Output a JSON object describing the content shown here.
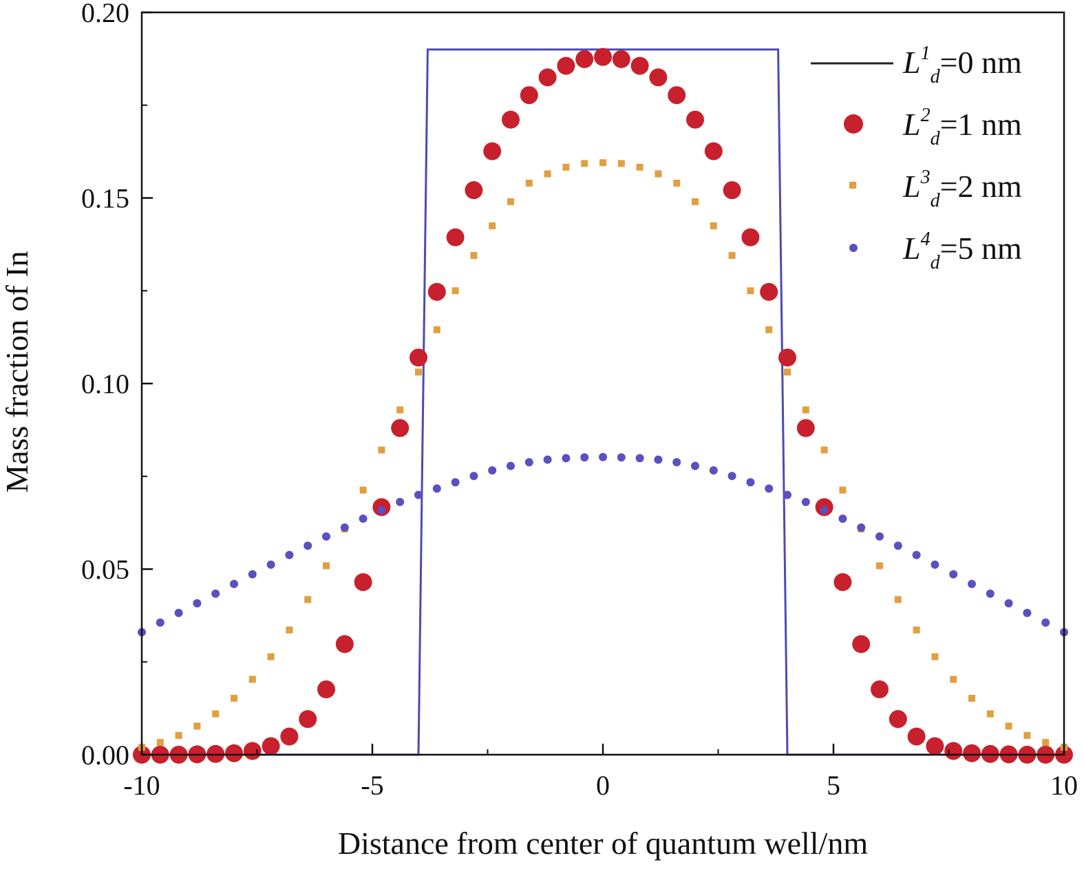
{
  "chart_data": {
    "type": "scatter",
    "title": "",
    "xlabel": "Distance from center of quantum well/nm",
    "ylabel": "Mass fraction of In",
    "xlim": [
      -10,
      10
    ],
    "ylim": [
      0,
      0.2
    ],
    "x_ticks": [
      "-10",
      "-5",
      "0",
      "5",
      "10"
    ],
    "y_ticks": [
      "0.00",
      "0.05",
      "0.10",
      "0.15",
      "0.20"
    ],
    "grid": false,
    "legend_position": "top-right",
    "colors": {
      "line": "#4a4ab8",
      "red": "#c8202c",
      "orange": "#e0a040",
      "blue": "#5a50c0"
    },
    "series": [
      {
        "legend": {
          "sym": "L",
          "sup": "1",
          "sub": "d",
          "rest": "=0 nm"
        },
        "marker": "line",
        "x": [
          -10,
          -4,
          -3.8,
          3.8,
          4,
          10
        ],
        "y": [
          0,
          0,
          0.19,
          0.19,
          0,
          0
        ]
      },
      {
        "legend": {
          "sym": "L",
          "sup": "2",
          "sub": "d",
          "rest": "=1 nm"
        },
        "marker": "circle-large",
        "x": [
          -10.0,
          -9.6,
          -9.2,
          -8.8,
          -8.4,
          -8.0,
          -7.6,
          -7.2,
          -6.8,
          -6.4,
          -6.0,
          -5.6,
          -5.2,
          -4.8,
          -4.4,
          -4.0,
          -3.6,
          -3.2,
          -2.8,
          -2.4,
          -2.0,
          -1.6,
          -1.2,
          -0.8,
          -0.4,
          0.0,
          0.4,
          0.8,
          1.2,
          1.6,
          2.0,
          2.4,
          2.8,
          3.2,
          3.6,
          4.0,
          4.4,
          4.8,
          5.2,
          5.6,
          6.0,
          6.4,
          6.8,
          7.2,
          7.6,
          8.0,
          8.4,
          8.8,
          9.2,
          9.6,
          10.0
        ],
        "y": [
          0.0,
          0.0,
          0.0,
          0.0001,
          0.0002,
          0.0004,
          0.001,
          0.0023,
          0.0049,
          0.0096,
          0.0176,
          0.0298,
          0.0465,
          0.0667,
          0.088,
          0.107,
          0.1247,
          0.1394,
          0.1521,
          0.1626,
          0.1711,
          0.1777,
          0.1825,
          0.1856,
          0.1874,
          0.188,
          0.1874,
          0.1856,
          0.1825,
          0.1777,
          0.1711,
          0.1626,
          0.1521,
          0.1394,
          0.1247,
          0.107,
          0.088,
          0.0667,
          0.0465,
          0.0298,
          0.0176,
          0.0096,
          0.0049,
          0.0023,
          0.001,
          0.0004,
          0.0002,
          0.0001,
          0.0,
          0.0,
          0.0
        ]
      },
      {
        "legend": {
          "sym": "L",
          "sup": "3",
          "sub": "d",
          "rest": "=2 nm"
        },
        "marker": "square-small",
        "x": [
          -10.0,
          -9.6,
          -9.2,
          -8.8,
          -8.4,
          -8.0,
          -7.6,
          -7.2,
          -6.8,
          -6.4,
          -6.0,
          -5.6,
          -5.2,
          -4.8,
          -4.4,
          -4.0,
          -3.6,
          -3.2,
          -2.8,
          -2.4,
          -2.0,
          -1.6,
          -1.2,
          -0.8,
          -0.4,
          0.0,
          0.4,
          0.8,
          1.2,
          1.6,
          2.0,
          2.4,
          2.8,
          3.2,
          3.6,
          4.0,
          4.4,
          4.8,
          5.2,
          5.6,
          6.0,
          6.4,
          6.8,
          7.2,
          7.6,
          8.0,
          8.4,
          8.8,
          9.2,
          9.6,
          10.0
        ],
        "y": [
          0.002,
          0.0033,
          0.0052,
          0.0077,
          0.011,
          0.0152,
          0.0203,
          0.0264,
          0.0336,
          0.0418,
          0.0509,
          0.0608,
          0.0713,
          0.0821,
          0.0929,
          0.1031,
          0.1145,
          0.125,
          0.1345,
          0.1425,
          0.149,
          0.154,
          0.1565,
          0.1583,
          0.1593,
          0.1595,
          0.1593,
          0.1583,
          0.1565,
          0.154,
          0.149,
          0.1425,
          0.1345,
          0.125,
          0.1145,
          0.1031,
          0.0929,
          0.0821,
          0.0713,
          0.0608,
          0.0509,
          0.0418,
          0.0336,
          0.0264,
          0.0203,
          0.0152,
          0.011,
          0.0077,
          0.0052,
          0.0033,
          0.002
        ]
      },
      {
        "legend": {
          "sym": "L",
          "sup": "4",
          "sub": "d",
          "rest": "=5 nm"
        },
        "marker": "circle-small",
        "x": [
          -10.0,
          -9.6,
          -9.2,
          -8.8,
          -8.4,
          -8.0,
          -7.6,
          -7.2,
          -6.8,
          -6.4,
          -6.0,
          -5.6,
          -5.2,
          -4.8,
          -4.4,
          -4.0,
          -3.6,
          -3.2,
          -2.8,
          -2.4,
          -2.0,
          -1.6,
          -1.2,
          -0.8,
          -0.4,
          0.0,
          0.4,
          0.8,
          1.2,
          1.6,
          2.0,
          2.4,
          2.8,
          3.2,
          3.6,
          4.0,
          4.4,
          4.8,
          5.2,
          5.6,
          6.0,
          6.4,
          6.8,
          7.2,
          7.6,
          8.0,
          8.4,
          8.8,
          9.2,
          9.6,
          10.0
        ],
        "y": [
          0.033,
          0.0356,
          0.0382,
          0.0408,
          0.0434,
          0.046,
          0.0486,
          0.0512,
          0.0538,
          0.0563,
          0.0588,
          0.0612,
          0.0636,
          0.0659,
          0.0681,
          0.07,
          0.0717,
          0.0734,
          0.0751,
          0.0766,
          0.0778,
          0.0788,
          0.0795,
          0.0799,
          0.0801,
          0.0802,
          0.0801,
          0.0799,
          0.0795,
          0.0788,
          0.0778,
          0.0766,
          0.0751,
          0.0734,
          0.0717,
          0.07,
          0.0681,
          0.0659,
          0.0636,
          0.0612,
          0.0588,
          0.0563,
          0.0538,
          0.0512,
          0.0486,
          0.046,
          0.0434,
          0.0408,
          0.0382,
          0.0356,
          0.033
        ]
      }
    ]
  }
}
